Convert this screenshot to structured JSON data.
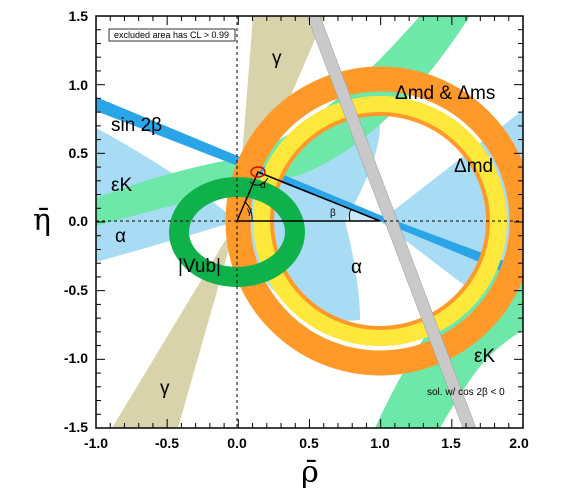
{
  "chart_data": {
    "type": "scatter",
    "title": "",
    "xlabel": "ρ̄",
    "ylabel": "η̄",
    "xlim": [
      -1.0,
      2.0
    ],
    "ylim": [
      -1.5,
      1.5
    ],
    "x_ticks": [
      "-1.0",
      "-0.5",
      "0.0",
      "0.5",
      "1.0",
      "1.5",
      "2.0"
    ],
    "y_ticks": [
      "1.5",
      "1.0",
      "0.5",
      "0.0",
      "-0.5",
      "-1.0",
      "-1.5"
    ],
    "legend_box": "excluded area has CL > 0.99",
    "note": "sol. w/ cos 2β < 0",
    "apex": [
      0.15,
      0.35
    ],
    "constraints": [
      {
        "name": "sin 2β",
        "label": "sin 2β",
        "color": "#2aa5e8"
      },
      {
        "name": "γ",
        "label": "γ",
        "color": "#d8d3aa"
      },
      {
        "name": "α",
        "label": "α",
        "color": "#a8dcf5"
      },
      {
        "name": "εK",
        "label": "εK",
        "color": "#6ee8a8"
      },
      {
        "name": "Δmd & Δms",
        "label": "Δmd & Δms",
        "color": "#ff9a2a"
      },
      {
        "name": "Δmd",
        "label": "Δmd",
        "color": "#ffe83c"
      },
      {
        "name": "|Vub|",
        "label": "|Vub|",
        "color": "#0fb14a"
      }
    ],
    "triangle_angles": [
      "α",
      "β",
      "γ"
    ]
  },
  "labels": {
    "sin2b": "sin 2β",
    "epsK_left": "εK",
    "epsK_right": "εK",
    "alpha_left": "α",
    "alpha_center": "α",
    "gamma_top": "γ",
    "gamma_bottom": "γ",
    "vub": "|Vub|",
    "dmd_dms": "Δmd & Δms",
    "dmd": "Δmd",
    "tri_alpha": "α",
    "tri_beta": "β",
    "tri_gamma": "γ"
  },
  "colors": {
    "sin2b": "#2aa5e8",
    "gamma": "#d8d3aa",
    "alpha": "#a8dcf5",
    "epsK": "#6ee8a8",
    "dms": "#ff9a2a",
    "dmd": "#ffe83c",
    "vub": "#0fb14a",
    "gray_band": "#c9c9c9"
  }
}
